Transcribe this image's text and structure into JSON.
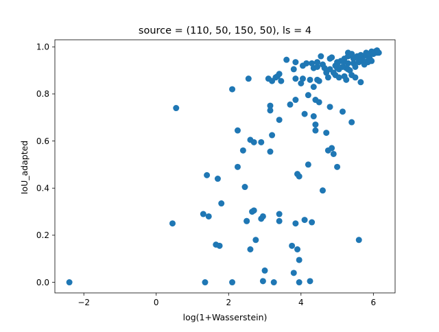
{
  "chart_data": {
    "type": "scatter",
    "title": "source = (110, 50, 150, 50), ls = 4",
    "xlabel": "log(1+Wasserstein)",
    "ylabel": "IoU_adapted",
    "xlim": [
      -2.8,
      6.6
    ],
    "ylim": [
      -0.045,
      1.03
    ],
    "xticks": [
      -2,
      0,
      2,
      4,
      6
    ],
    "xtick_labels": [
      "−2",
      "0",
      "2",
      "4",
      "6"
    ],
    "yticks": [
      0.0,
      0.2,
      0.4,
      0.6,
      0.8,
      1.0
    ],
    "ytick_labels": [
      "0.0",
      "0.2",
      "0.4",
      "0.6",
      "0.8",
      "1.0"
    ],
    "grid": false,
    "marker_color": "#1f77b4",
    "points": [
      [
        -2.4,
        0.0
      ],
      [
        0.45,
        0.25
      ],
      [
        0.55,
        0.74
      ],
      [
        1.3,
        0.29
      ],
      [
        1.35,
        0.0
      ],
      [
        1.4,
        0.455
      ],
      [
        1.45,
        0.28
      ],
      [
        1.65,
        0.16
      ],
      [
        1.7,
        0.44
      ],
      [
        1.75,
        0.155
      ],
      [
        1.8,
        0.335
      ],
      [
        2.1,
        0.0
      ],
      [
        2.1,
        0.82
      ],
      [
        2.25,
        0.49
      ],
      [
        2.25,
        0.645
      ],
      [
        2.4,
        0.56
      ],
      [
        2.45,
        0.405
      ],
      [
        2.5,
        0.26
      ],
      [
        2.5,
        0.26
      ],
      [
        2.55,
        0.865
      ],
      [
        2.6,
        0.14
      ],
      [
        2.6,
        0.605
      ],
      [
        2.65,
        0.3
      ],
      [
        2.7,
        0.595
      ],
      [
        2.7,
        0.305
      ],
      [
        2.75,
        0.18
      ],
      [
        2.9,
        0.595
      ],
      [
        2.9,
        0.27
      ],
      [
        2.95,
        0.005
      ],
      [
        2.95,
        0.28
      ],
      [
        3.0,
        0.05
      ],
      [
        3.1,
        0.865
      ],
      [
        3.15,
        0.75
      ],
      [
        3.15,
        0.73
      ],
      [
        3.15,
        0.555
      ],
      [
        3.2,
        0.855
      ],
      [
        3.25,
        0.0
      ],
      [
        3.2,
        0.625
      ],
      [
        3.3,
        0.87
      ],
      [
        3.35,
        0.875
      ],
      [
        3.4,
        0.885
      ],
      [
        3.4,
        0.29
      ],
      [
        3.4,
        0.69
      ],
      [
        3.4,
        0.26
      ],
      [
        3.45,
        0.855
      ],
      [
        3.6,
        0.945
      ],
      [
        3.7,
        0.755
      ],
      [
        3.75,
        0.155
      ],
      [
        3.8,
        0.905
      ],
      [
        3.8,
        0.04
      ],
      [
        3.85,
        0.935
      ],
      [
        3.85,
        0.865
      ],
      [
        3.85,
        0.775
      ],
      [
        3.85,
        0.25
      ],
      [
        3.9,
        0.46
      ],
      [
        3.9,
        0.14
      ],
      [
        3.95,
        0.45
      ],
      [
        3.95,
        0.095
      ],
      [
        3.95,
        0.0
      ],
      [
        4.0,
        0.845
      ],
      [
        4.05,
        0.865
      ],
      [
        4.05,
        0.92
      ],
      [
        4.1,
        0.715
      ],
      [
        4.1,
        0.265
      ],
      [
        4.15,
        0.93
      ],
      [
        4.2,
        0.5
      ],
      [
        4.2,
        0.795
      ],
      [
        4.25,
        0.86
      ],
      [
        4.25,
        0.005
      ],
      [
        4.3,
        0.93
      ],
      [
        4.3,
        0.255
      ],
      [
        4.35,
        0.91
      ],
      [
        4.35,
        0.83
      ],
      [
        4.35,
        0.705
      ],
      [
        4.4,
        0.645
      ],
      [
        4.4,
        0.67
      ],
      [
        4.4,
        0.775
      ],
      [
        4.45,
        0.915
      ],
      [
        4.45,
        0.86
      ],
      [
        4.45,
        0.935
      ],
      [
        4.5,
        0.765
      ],
      [
        4.5,
        0.855
      ],
      [
        4.55,
        0.96
      ],
      [
        4.6,
        0.39
      ],
      [
        4.6,
        0.925
      ],
      [
        4.65,
        0.91
      ],
      [
        4.7,
        0.635
      ],
      [
        4.7,
        0.89
      ],
      [
        4.75,
        0.56
      ],
      [
        4.75,
        0.87
      ],
      [
        4.8,
        0.745
      ],
      [
        4.8,
        0.905
      ],
      [
        4.8,
        0.95
      ],
      [
        4.85,
        0.57
      ],
      [
        4.85,
        0.955
      ],
      [
        4.9,
        0.545
      ],
      [
        4.9,
        0.89
      ],
      [
        4.95,
        0.88
      ],
      [
        5.0,
        0.49
      ],
      [
        5.0,
        0.935
      ],
      [
        5.05,
        0.87
      ],
      [
        5.05,
        0.905
      ],
      [
        5.1,
        0.94
      ],
      [
        5.15,
        0.725
      ],
      [
        5.15,
        0.915
      ],
      [
        5.2,
        0.95
      ],
      [
        5.2,
        0.875
      ],
      [
        5.25,
        0.91
      ],
      [
        5.25,
        0.86
      ],
      [
        5.3,
        0.93
      ],
      [
        5.3,
        0.96
      ],
      [
        5.3,
        0.975
      ],
      [
        5.35,
        0.965
      ],
      [
        5.35,
        0.9
      ],
      [
        5.4,
        0.68
      ],
      [
        5.4,
        0.97
      ],
      [
        5.4,
        0.88
      ],
      [
        5.45,
        0.93
      ],
      [
        5.45,
        0.95
      ],
      [
        5.5,
        0.915
      ],
      [
        5.5,
        0.87
      ],
      [
        5.55,
        0.96
      ],
      [
        5.6,
        0.935
      ],
      [
        5.6,
        0.18
      ],
      [
        5.65,
        0.85
      ],
      [
        5.65,
        0.965
      ],
      [
        5.7,
        0.955
      ],
      [
        5.75,
        0.925
      ],
      [
        5.8,
        0.975
      ],
      [
        5.8,
        0.965
      ],
      [
        5.85,
        0.96
      ],
      [
        5.85,
        0.935
      ],
      [
        5.9,
        0.95
      ],
      [
        5.9,
        0.97
      ],
      [
        5.95,
        0.98
      ],
      [
        5.95,
        0.94
      ],
      [
        6.0,
        0.97
      ],
      [
        6.05,
        0.98
      ],
      [
        6.1,
        0.975
      ],
      [
        6.1,
        0.985
      ],
      [
        6.15,
        0.975
      ],
      [
        5.7,
        0.945
      ],
      [
        5.2,
        0.935
      ],
      [
        4.95,
        0.92
      ],
      [
        5.0,
        0.91
      ],
      [
        5.6,
        0.94
      ],
      [
        5.85,
        0.94
      ],
      [
        5.3,
        0.905
      ],
      [
        5.0,
        0.925
      ]
    ]
  }
}
